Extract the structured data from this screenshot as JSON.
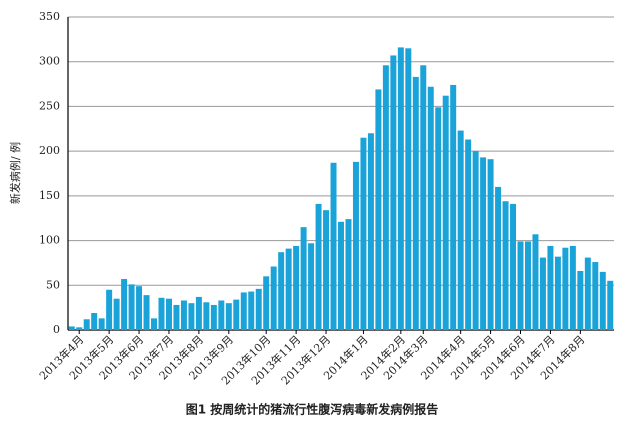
{
  "chart_data": {
    "type": "bar",
    "caption": "图1  按周统计的猪流行性腹泻病毒新发病例报告",
    "y_label": "新发病例/ 例",
    "color": "#1aa3d8",
    "grid": true,
    "ylim": [
      0,
      350
    ],
    "yticks": [
      0,
      50,
      100,
      150,
      200,
      250,
      300,
      350
    ],
    "categories": [
      null,
      "2013年4月",
      null,
      null,
      null,
      "2013年5月",
      null,
      null,
      null,
      "2013年6月",
      null,
      null,
      null,
      "2013年7月",
      null,
      null,
      null,
      "2013年8月",
      null,
      null,
      null,
      "2013年9月",
      null,
      null,
      null,
      null,
      "2013年10月",
      null,
      null,
      null,
      "2013年11月",
      null,
      null,
      null,
      "2013年12月",
      null,
      null,
      null,
      null,
      "2014年1月",
      null,
      null,
      null,
      null,
      "2014年2月",
      null,
      null,
      "2014年3月",
      null,
      null,
      null,
      null,
      "2014年4月",
      null,
      null,
      null,
      "2014年5月",
      null,
      null,
      null,
      "2014年6月",
      null,
      null,
      null,
      "2014年7月",
      null,
      null,
      null,
      "2014年8月",
      null,
      null,
      null,
      null
    ],
    "values": [
      4,
      3,
      12,
      19,
      13,
      45,
      35,
      57,
      51,
      49,
      39,
      13,
      36,
      35,
      28,
      33,
      30,
      37,
      31,
      28,
      33,
      30,
      34,
      42,
      43,
      46,
      60,
      71,
      87,
      91,
      94,
      115,
      97,
      141,
      134,
      187,
      121,
      124,
      188,
      215,
      220,
      269,
      296,
      307,
      316,
      315,
      283,
      296,
      272,
      249,
      262,
      274,
      223,
      213,
      200,
      193,
      191,
      160,
      144,
      141,
      99,
      99,
      107,
      81,
      94,
      82,
      92,
      94,
      66,
      81,
      76,
      65,
      55
    ]
  }
}
